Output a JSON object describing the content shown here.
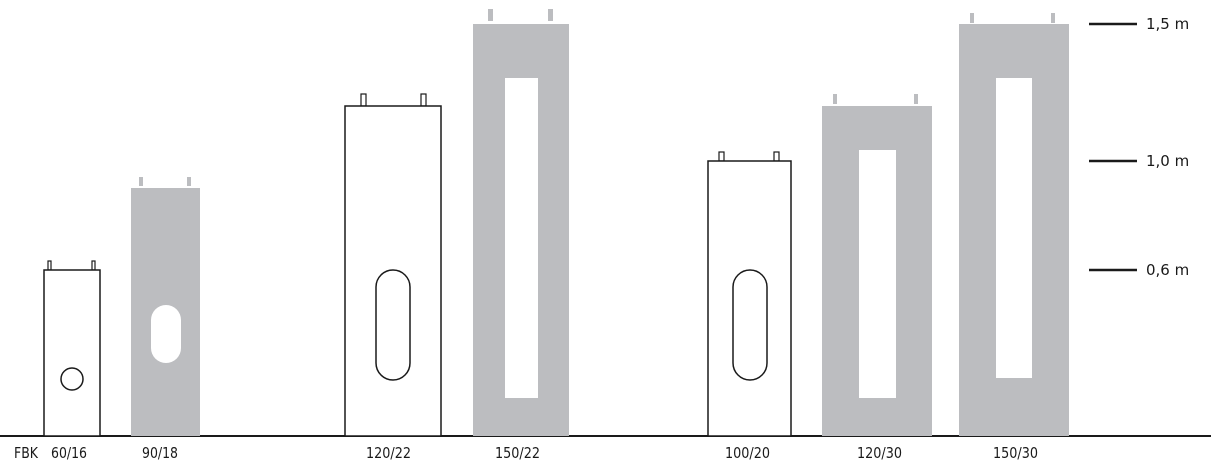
{
  "series_label": "FBK",
  "colors": {
    "line": "#1a1a1a",
    "gray": "#bcbdc0",
    "white": "#ffffff"
  },
  "scale": {
    "labels": [
      "1,5 m",
      "1,0 m",
      "0,6 m"
    ]
  },
  "units": [
    {
      "label": "60/16",
      "style": "outline",
      "opening": "circle"
    },
    {
      "label": "90/18",
      "style": "gray",
      "opening": "oval"
    },
    {
      "label": "120/22",
      "style": "outline",
      "opening": "oval"
    },
    {
      "label": "150/22",
      "style": "gray",
      "opening": "rect"
    },
    {
      "label": "100/20",
      "style": "outline",
      "opening": "oval"
    },
    {
      "label": "120/30",
      "style": "gray",
      "opening": "rect"
    },
    {
      "label": "150/30",
      "style": "gray",
      "opening": "rect"
    }
  ]
}
